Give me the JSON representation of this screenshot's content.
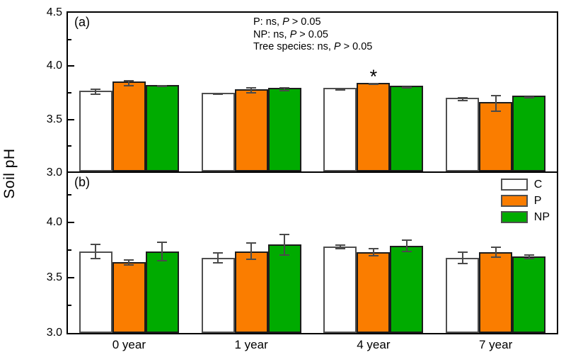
{
  "figure": {
    "ylabel": "Soil pH",
    "annotation_lines": [
      {
        "prefix": "P: ns, ",
        "italic": "P",
        "suffix": " > 0.05"
      },
      {
        "prefix": "NP: ns, ",
        "italic": "P",
        "suffix": " > 0.05"
      },
      {
        "prefix": "Tree species: ns, ",
        "italic": "P",
        "suffix": " > 0.05"
      }
    ],
    "legend": [
      {
        "label": "C",
        "color": "#ffffff"
      },
      {
        "label": "P",
        "color": "#fa7d00"
      },
      {
        "label": "NP",
        "color": "#00ab00"
      }
    ]
  },
  "chart_data": {
    "type": "bar",
    "categories": [
      "0 year",
      "1 year",
      "4 year",
      "7 year"
    ],
    "ylabel": "Soil pH",
    "grid": false,
    "legend_position": "inside top-right of panel (b)",
    "annotation": [
      "P: ns, P > 0.05",
      "NP: ns, P > 0.05",
      "Tree species: ns, P > 0.05"
    ],
    "bar_colors": {
      "C": "#ffffff",
      "P": "#fa7d00",
      "NP": "#00ab00"
    },
    "panels": [
      {
        "label": "(a)",
        "ylim": [
          3.0,
          4.5
        ],
        "yticks_major": [
          4.5,
          4.0,
          3.5,
          3.0
        ],
        "yticks_minor": [
          4.25,
          3.75,
          3.25
        ],
        "series": [
          {
            "name": "C",
            "color": "#ffffff",
            "values": [
              3.76,
              3.74,
              3.78,
              3.69
            ],
            "errors": [
              0.03,
              0.01,
              0.01,
              0.02
            ]
          },
          {
            "name": "P",
            "color": "#fa7d00",
            "values": [
              3.84,
              3.77,
              3.83,
              3.65
            ],
            "errors": [
              0.03,
              0.03,
              0.01,
              0.08
            ]
          },
          {
            "name": "NP",
            "color": "#00ab00",
            "values": [
              3.81,
              3.78,
              3.8,
              3.71
            ],
            "errors": [
              0.01,
              0.02,
              0.01,
              0.01
            ]
          }
        ],
        "sig_marker": {
          "series": "P",
          "category": "4 year",
          "symbol": "*"
        }
      },
      {
        "label": "(b)",
        "ylim": [
          3.0,
          4.45
        ],
        "yticks_major": [
          4.0,
          3.5,
          3.0
        ],
        "yticks_minor": [
          4.25,
          3.75,
          3.25
        ],
        "series": [
          {
            "name": "C",
            "color": "#ffffff",
            "values": [
              3.74,
              3.68,
              3.78,
              3.68
            ],
            "errors": [
              0.07,
              0.05,
              0.02,
              0.06
            ]
          },
          {
            "name": "P",
            "color": "#fa7d00",
            "values": [
              3.64,
              3.74,
              3.73,
              3.73
            ],
            "errors": [
              0.03,
              0.08,
              0.04,
              0.05
            ]
          },
          {
            "name": "NP",
            "color": "#00ab00",
            "values": [
              3.74,
              3.8,
              3.79,
              3.69
            ],
            "errors": [
              0.09,
              0.1,
              0.06,
              0.02
            ]
          }
        ]
      }
    ]
  }
}
